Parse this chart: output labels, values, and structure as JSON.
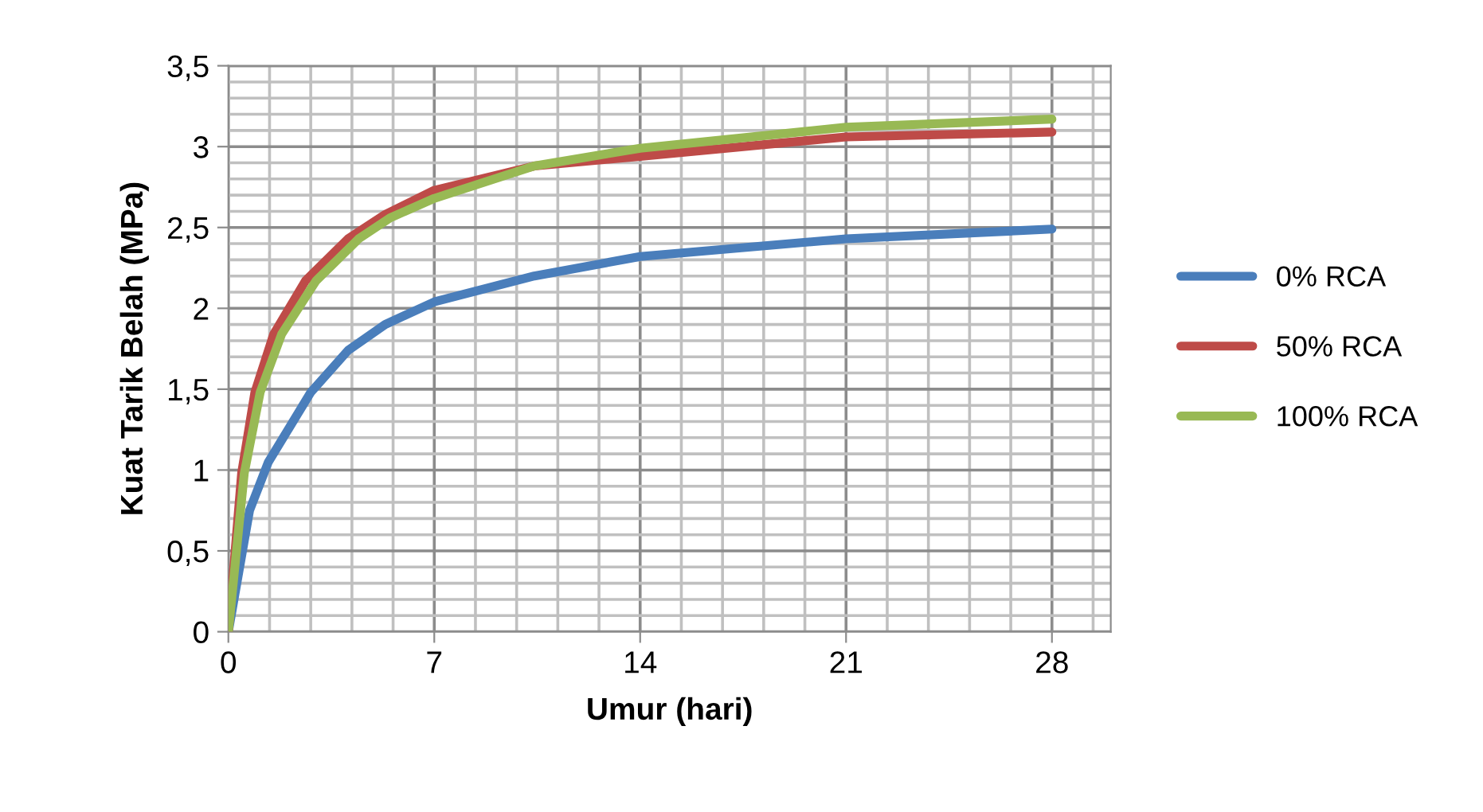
{
  "chart_data": {
    "type": "line",
    "xlabel": "Umur (hari)",
    "ylabel": "Kuat Tarik Belah (MPa)",
    "xlim": [
      0,
      30
    ],
    "xticks": [
      0,
      7,
      14,
      21,
      28
    ],
    "ylim": [
      0,
      3.5
    ],
    "yticks": [
      0,
      {
        "value": 0.5,
        "label": "0,5"
      },
      1,
      {
        "value": 1.5,
        "label": "1,5"
      },
      2,
      {
        "value": 2.5,
        "label": "2,5"
      },
      3,
      {
        "value": 3.5,
        "label": "3,5"
      }
    ],
    "grid": true,
    "legend": "right",
    "marker": "none",
    "line_style": "solid",
    "series": [
      {
        "name": "0% RCA",
        "color": "#4a7ebb",
        "x": [
          0,
          0.72,
          1.36,
          2.8,
          4.07,
          5.33,
          7,
          10.4,
          14,
          21,
          28
        ],
        "values": [
          0,
          0.75,
          1.05,
          1.48,
          1.74,
          1.9,
          2.04,
          2.2,
          2.32,
          2.43,
          2.49
        ]
      },
      {
        "name": "50% RCA",
        "color": "#be4b48",
        "x": [
          0,
          0.45,
          0.9,
          1.54,
          2.62,
          4.07,
          5.33,
          7,
          10.4,
          14,
          21,
          28
        ],
        "values": [
          0,
          0.98,
          1.48,
          1.84,
          2.17,
          2.43,
          2.58,
          2.73,
          2.88,
          2.94,
          3.06,
          3.09
        ]
      },
      {
        "name": "100% RCA",
        "color": "#98b954",
        "x": [
          0,
          0.54,
          1.08,
          1.81,
          2.98,
          4.43,
          5.5,
          7,
          10.4,
          14,
          21,
          28
        ],
        "values": [
          0,
          0.98,
          1.48,
          1.84,
          2.17,
          2.43,
          2.56,
          2.68,
          2.88,
          2.99,
          3.12,
          3.17
        ]
      }
    ]
  }
}
